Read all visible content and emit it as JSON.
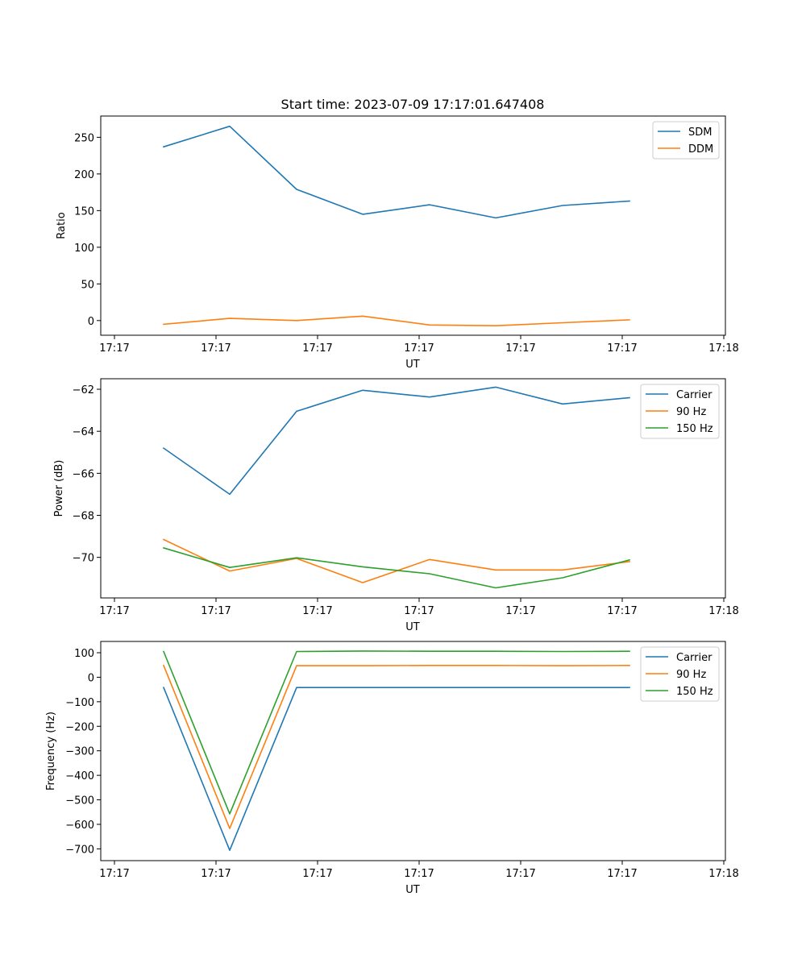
{
  "chart_data": [
    {
      "type": "line",
      "title": "Start time: 2023-07-09 17:17:01.647408",
      "xlabel": "UT",
      "ylabel": "Ratio",
      "x_tick_labels": [
        "17:17",
        "17:17",
        "17:17",
        "17:17",
        "17:17",
        "17:17",
        "17:18"
      ],
      "y_ticks": [
        0,
        50,
        100,
        150,
        200,
        250
      ],
      "ylim": [
        -20,
        279
      ],
      "legend_position": "top-right",
      "series": [
        {
          "name": "SDM",
          "color": "#1f77b4",
          "values": [
            237,
            265,
            179,
            145,
            158,
            140,
            157,
            163
          ]
        },
        {
          "name": "DDM",
          "color": "#ff7f0e",
          "values": [
            -5,
            3,
            0,
            6,
            -6,
            -7,
            -3,
            1
          ]
        }
      ]
    },
    {
      "type": "line",
      "title": "",
      "xlabel": "UT",
      "ylabel": "Power (dB)",
      "x_tick_labels": [
        "17:17",
        "17:17",
        "17:17",
        "17:17",
        "17:17",
        "17:17",
        "17:18"
      ],
      "y_ticks": [
        -70,
        -68,
        -66,
        -64,
        -62
      ],
      "ylim": [
        -71.93,
        -61.5
      ],
      "legend_position": "top-right",
      "series": [
        {
          "name": "Carrier",
          "color": "#1f77b4",
          "values": [
            -64.8,
            -67.0,
            -63.05,
            -62.05,
            -62.37,
            -61.9,
            -62.7,
            -62.4
          ]
        },
        {
          "name": "90 Hz",
          "color": "#ff7f0e",
          "values": [
            -69.15,
            -70.65,
            -70.05,
            -71.2,
            -70.1,
            -70.6,
            -70.6,
            -70.2
          ]
        },
        {
          "name": "150 Hz",
          "color": "#2ca02c",
          "values": [
            -69.55,
            -70.48,
            -70.02,
            -70.45,
            -70.78,
            -71.45,
            -70.97,
            -70.12
          ]
        }
      ]
    },
    {
      "type": "line",
      "title": "",
      "xlabel": "UT",
      "ylabel": "Frequency (Hz)",
      "x_tick_labels": [
        "17:17",
        "17:17",
        "17:17",
        "17:17",
        "17:17",
        "17:17",
        "17:18"
      ],
      "y_ticks": [
        -700,
        -600,
        -500,
        -400,
        -300,
        -200,
        -100,
        0,
        100
      ],
      "ylim": [
        -748,
        146
      ],
      "legend_position": "top-right",
      "series": [
        {
          "name": "Carrier",
          "color": "#1f77b4",
          "values": [
            -42,
            -706,
            -42,
            -42,
            -42,
            -42,
            -42,
            -42
          ]
        },
        {
          "name": "90 Hz",
          "color": "#ff7f0e",
          "values": [
            48,
            -617,
            47,
            47,
            48,
            48,
            47,
            48
          ]
        },
        {
          "name": "150 Hz",
          "color": "#2ca02c",
          "values": [
            105,
            -557,
            105,
            107,
            106,
            106,
            105,
            106
          ]
        }
      ]
    }
  ]
}
